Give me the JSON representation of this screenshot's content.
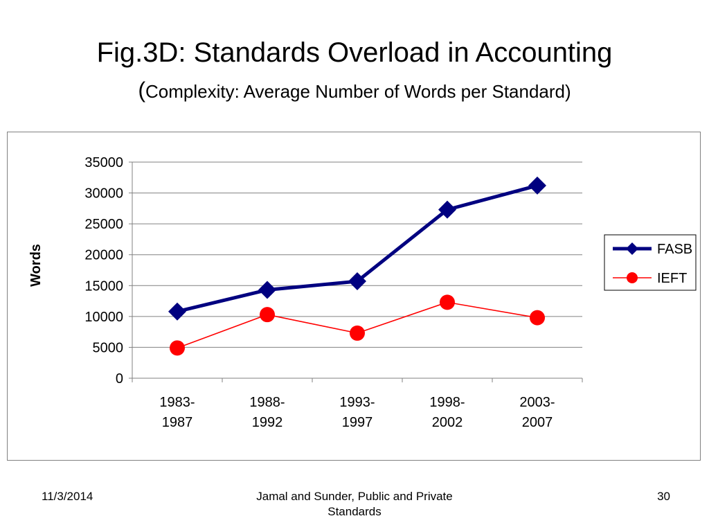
{
  "slide": {
    "title": "Fig.3D: Standards Overload in Accounting",
    "subtitle_open": "(",
    "subtitle_text": "Complexity: Average Number of Words per Standard)"
  },
  "footer": {
    "date": "11/3/2014",
    "source": "Jamal and Sunder, Public and Private Standards",
    "page": "30"
  },
  "colors": {
    "fasb": "#000080",
    "ieft": "#ff0000",
    "grid": "#808080"
  },
  "chart_data": {
    "type": "line",
    "ylabel": "Words",
    "xlabel": "",
    "ylim": [
      0,
      35000
    ],
    "yticks": [
      "0",
      "5000",
      "10000",
      "15000",
      "20000",
      "25000",
      "30000",
      "35000"
    ],
    "grid": "horizontal",
    "legend_position": "right",
    "categories": [
      [
        "1983-",
        "1987"
      ],
      [
        "1988-",
        "1992"
      ],
      [
        "1993-",
        "1997"
      ],
      [
        "1998-",
        "2002"
      ],
      [
        "2003-",
        "2007"
      ]
    ],
    "series": [
      {
        "name": "FASB",
        "values": [
          10800,
          14300,
          15700,
          27300,
          31200
        ],
        "marker": "diamond"
      },
      {
        "name": "IEFT",
        "values": [
          4900,
          10300,
          7300,
          12300,
          9800
        ],
        "marker": "circle"
      }
    ]
  }
}
